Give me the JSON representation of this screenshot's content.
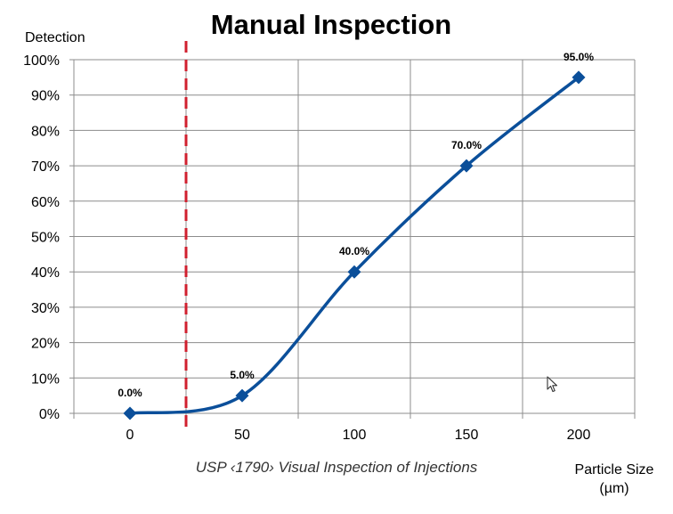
{
  "chart_data": {
    "type": "line",
    "title": "Manual Inspection",
    "ylabel": "Detection",
    "xlabel": "Particle Size\n(µm)",
    "caption": "USP ‹1790› Visual Inspection of Injections",
    "x": [
      0,
      50,
      100,
      150,
      200
    ],
    "x_ticks": [
      "0",
      "50",
      "100",
      "150",
      "200"
    ],
    "xlim": [
      -25,
      225
    ],
    "y_ticks": [
      "0%",
      "10%",
      "20%",
      "30%",
      "40%",
      "50%",
      "60%",
      "70%",
      "80%",
      "90%",
      "100%"
    ],
    "ylim": [
      0,
      100
    ],
    "grid": true,
    "series": [
      {
        "values": [
          0,
          5,
          40,
          70,
          95
        ],
        "labels": [
          "0.0%",
          "5.0%",
          "40.0%",
          "70.0%",
          "95.0%"
        ],
        "color": "#0b4f9a",
        "marker": "diamond",
        "smooth": true
      }
    ],
    "reference_line": {
      "x": 25,
      "color": "#d1202f",
      "style": "dashed"
    }
  },
  "cursor": {
    "icon": "mouse-pointer-icon"
  }
}
